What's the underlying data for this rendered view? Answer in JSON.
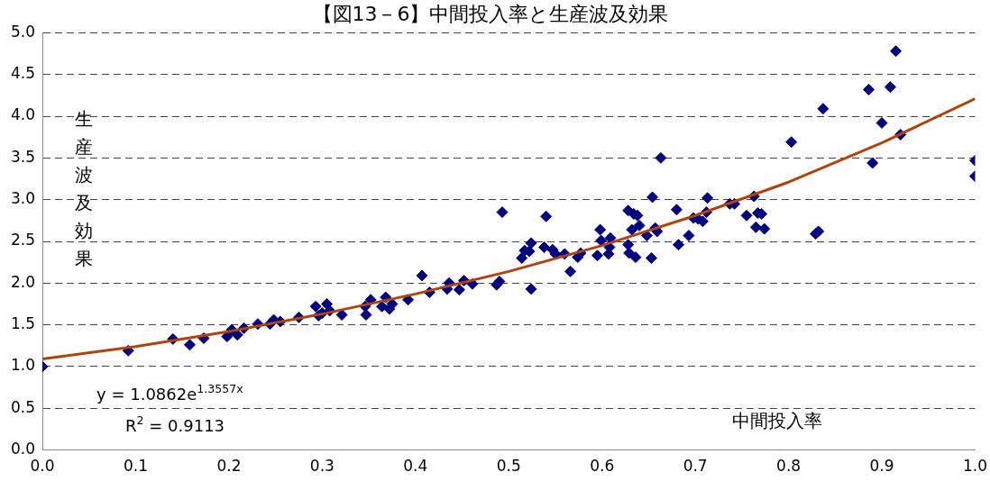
{
  "chart_data": {
    "type": "scatter",
    "title": "【図13－6】中間投入率と生産波及効果",
    "xlabel": "中間投入率",
    "ylabel": "生産波及効果",
    "annotations": [
      "y = 1.0862e$^{1.3557x}$",
      "R$^{2}$ = 0.9113"
    ],
    "xlim": [
      0,
      1
    ],
    "ylim": [
      0,
      5
    ],
    "xticks": [
      {
        "value": 0,
        "label": "0.0"
      },
      {
        "value": 0.1,
        "label": "0.1"
      },
      {
        "value": 0.2,
        "label": "0.2"
      },
      {
        "value": 0.3,
        "label": "0.3"
      },
      {
        "value": 0.4,
        "label": "0.4"
      },
      {
        "value": 0.5,
        "label": "0.5"
      },
      {
        "value": 0.6,
        "label": "0.6"
      },
      {
        "value": 0.7,
        "label": "0.7"
      },
      {
        "value": 0.8,
        "label": "0.8"
      },
      {
        "value": 0.9,
        "label": "0.9"
      },
      {
        "value": 1,
        "label": "1.0"
      }
    ],
    "yticks": [
      {
        "value": 0,
        "label": "0.0"
      },
      {
        "value": 0.5,
        "label": "0.5"
      },
      {
        "value": 1,
        "label": "1.0"
      },
      {
        "value": 1.5,
        "label": "1.5"
      },
      {
        "value": 2,
        "label": "2.0"
      },
      {
        "value": 2.5,
        "label": "2.5"
      },
      {
        "value": 3,
        "label": "3.0"
      },
      {
        "value": 3.5,
        "label": "3.5"
      },
      {
        "value": 4,
        "label": "4.0"
      },
      {
        "value": 4.5,
        "label": "4.5"
      },
      {
        "value": 5,
        "label": "5.0"
      }
    ],
    "grid": "y",
    "legend": false,
    "series": [
      {
        "type": "scatter",
        "color": "#000080",
        "marker": "diamond",
        "x": [
          0,
          0.092,
          0.14,
          0.158,
          0.173,
          0.198,
          0.203,
          0.209,
          0.216,
          0.231,
          0.244,
          0.248,
          0.255,
          0.275,
          0.293,
          0.296,
          0.3,
          0.305,
          0.308,
          0.321,
          0.346,
          0.347,
          0.352,
          0.364,
          0.368,
          0.372,
          0.375,
          0.392,
          0.407,
          0.415,
          0.434,
          0.436,
          0.447,
          0.452,
          0.461,
          0.487,
          0.49,
          0.493,
          0.514,
          0.517,
          0.522,
          0.524,
          0.524,
          0.54,
          0.538,
          0.547,
          0.55,
          0.56,
          0.566,
          0.574,
          0.577,
          0.595,
          0.598,
          0.599,
          0.607,
          0.609,
          0.608,
          0.628,
          0.629,
          0.628,
          0.632,
          0.634,
          0.638,
          0.636,
          0.64,
          0.648,
          0.653,
          0.654,
          0.657,
          0.659,
          0.663,
          0.68,
          0.682,
          0.693,
          0.698,
          0.703,
          0.708,
          0.713,
          0.712,
          0.737,
          0.742,
          0.755,
          0.763,
          0.765,
          0.767,
          0.771,
          0.774,
          0.803,
          0.829,
          0.832,
          0.837,
          0.886,
          0.89,
          0.9,
          0.909,
          0.915,
          0.92,
          1,
          1
        ],
        "values": [
          1,
          1.19,
          1.33,
          1.26,
          1.34,
          1.36,
          1.44,
          1.38,
          1.46,
          1.51,
          1.51,
          1.56,
          1.54,
          1.59,
          1.72,
          1.61,
          1.64,
          1.75,
          1.67,
          1.62,
          1.72,
          1.62,
          1.8,
          1.72,
          1.83,
          1.69,
          1.75,
          1.8,
          2.09,
          1.89,
          1.93,
          2,
          1.92,
          2.03,
          1.99,
          1.98,
          2.02,
          2.85,
          2.3,
          2.39,
          2.38,
          2.48,
          1.93,
          2.8,
          2.43,
          2.4,
          2.35,
          2.35,
          2.14,
          2.31,
          2.36,
          2.33,
          2.64,
          2.51,
          2.35,
          2.54,
          2.43,
          2.46,
          2.36,
          2.87,
          2.64,
          2.83,
          2.81,
          2.31,
          2.69,
          2.57,
          2.3,
          3.03,
          2.66,
          2.62,
          3.5,
          2.88,
          2.46,
          2.57,
          2.78,
          2.77,
          2.74,
          3.02,
          2.85,
          2.95,
          2.95,
          2.81,
          3.04,
          2.67,
          2.84,
          2.83,
          2.65,
          3.69,
          2.59,
          2.62,
          4.09,
          4.32,
          3.44,
          3.92,
          4.35,
          4.78,
          3.78,
          3.47,
          3.28
        ]
      },
      {
        "type": "line",
        "color": "#b0440c",
        "marker": "none",
        "line_style": "solid",
        "x": [
          0,
          0.1,
          0.2,
          0.3,
          0.4,
          0.5,
          0.6,
          0.7,
          0.8,
          0.9,
          1
        ],
        "values": [
          1.09,
          1.24,
          1.42,
          1.63,
          1.87,
          2.14,
          2.45,
          2.81,
          3.21,
          3.68,
          4.21
        ]
      }
    ]
  }
}
